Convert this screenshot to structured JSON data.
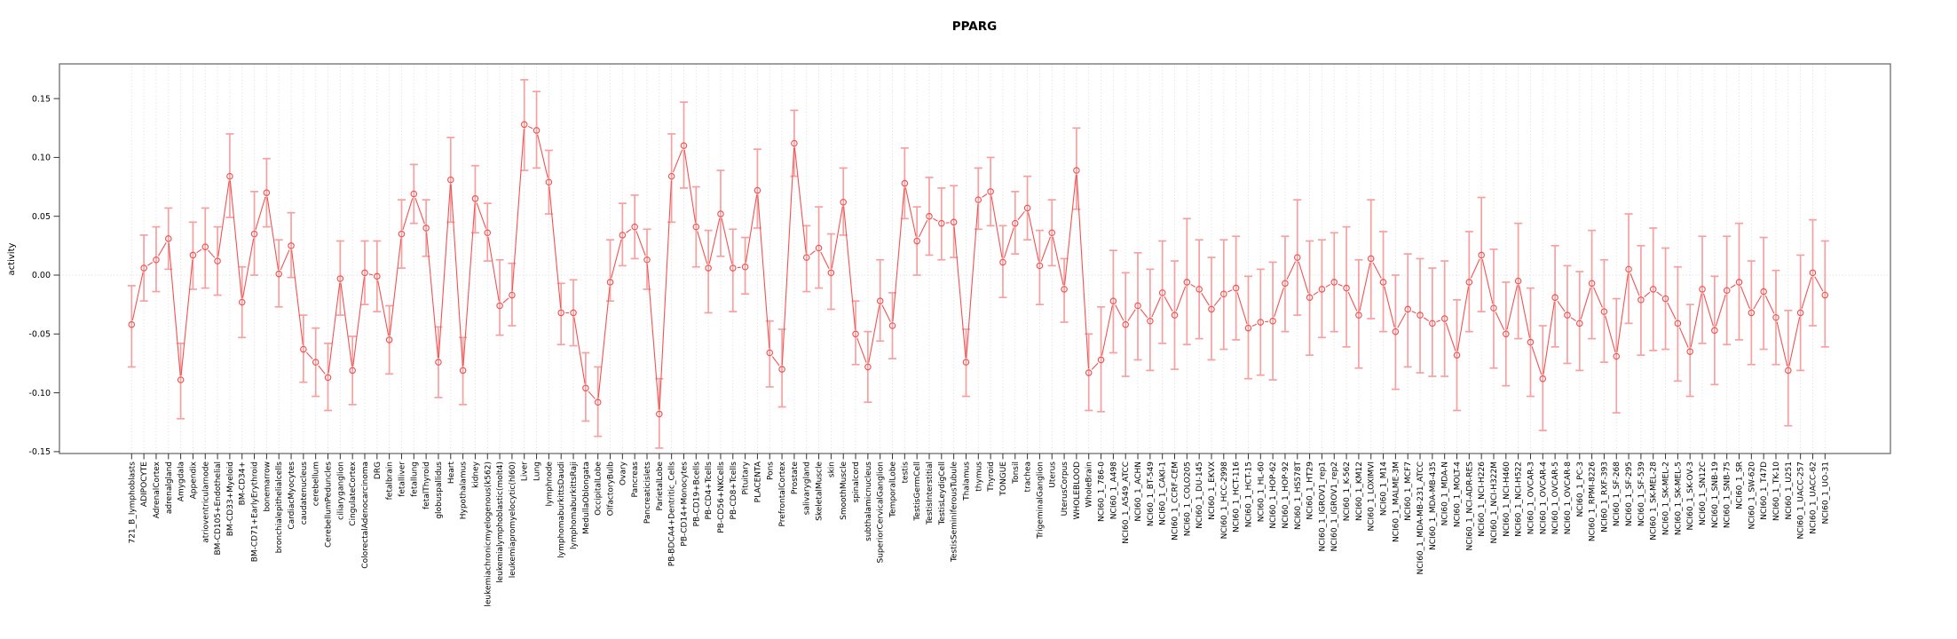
{
  "title": "PPARG",
  "ylabel": "activity",
  "colors": {
    "point_line": "#f25252",
    "error_bar": "#f7a0a0",
    "grid": "#d8d8d8",
    "box": "#6e6e6e",
    "tick": "#333333",
    "text": "#000000"
  },
  "chart_data": {
    "type": "line",
    "title": "PPARG",
    "xlabel": "",
    "ylabel": "activity",
    "ylim": [
      -0.152,
      0.179
    ],
    "yticks": [
      -0.15,
      -0.1,
      -0.05,
      0.0,
      0.05,
      0.1,
      0.15
    ],
    "grid": "vertical dotted gridline at every category; dotted horizontal line at 0",
    "legend": "none",
    "marker": "open-circle",
    "error_bars": true,
    "categories": [
      "721_B_lymphoblasts",
      "ADIPOCYTE",
      "AdrenalCortex",
      "adrenalgland",
      "Amygdala",
      "Appendix",
      "atrioventricularnode",
      "BM-CD105+Endothelial",
      "BM-CD33+Myeloid",
      "BM-CD34+",
      "BM-CD71+EarlyErythroid",
      "bonemarrow",
      "bronchialepithelialcells",
      "CardiacMyocytes",
      "caudatenucleus",
      "cerebellum",
      "CerebellumPeduncles",
      "ciliaryganglion",
      "CingulateCortex",
      "ColorectalAdenocarcinoma",
      "DRG",
      "fetalbrain",
      "fetalliver",
      "fetallung",
      "fetalThyroid",
      "globuspallidus",
      "Heart",
      "Hypothalamus",
      "kidney",
      "leukemiachronicmyelogenous(k562)",
      "leukemialymphoblastic(molt4)",
      "leukemiapromyelocytic(hl60)",
      "Liver",
      "Lung",
      "lymphnode",
      "lymphomaburkittsDaudi",
      "lymphomaburkittsRaji",
      "MedullaOblongata",
      "OccipitalLobe",
      "OlfactoryBulb",
      "Ovary",
      "Pancreas",
      "Pancreaticislets",
      "ParietalLobe",
      "PB-BDCA4+Dentritic_Cells",
      "PB-CD14+Monocytes",
      "PB-CD19+Bcells",
      "PB-CD4+Tcells",
      "PB-CD56+NKCells",
      "PB-CD8+Tcells",
      "Pituitary",
      "PLACENTA",
      "Pons",
      "PrefrontalCortex",
      "Prostate",
      "salivarygland",
      "SkeletalMuscle",
      "skin",
      "SmoothMuscle",
      "spinalcord",
      "subthalamicnucleus",
      "SuperiorCervicalGanglion",
      "TemporalLobe",
      "testis",
      "TestisGermCell",
      "TestisInterstitial",
      "TestisLeydigCell",
      "TestisSeminiferousTubule",
      "Thalamus",
      "thymus",
      "Thyroid",
      "TONGUE",
      "Tonsil",
      "trachea",
      "TrigeminalGanglion",
      "Uterus",
      "UterusCorpus",
      "WHOLEBLOOD",
      "WholeBrain",
      "NCI60_1_786-0",
      "NCI60_1_A498",
      "NCI60_1_A549_ATCC",
      "NCI60_1_ACHN",
      "NCI60_1_BT-549",
      "NCI60_1_CAKI-1",
      "NCI60_1_CCRF-CEM",
      "NCI60_1_COLO205",
      "NCI60_1_DU-145",
      "NCI60_1_EKVX",
      "NCI60_1_HCC-2998",
      "NCI60_1_HCT-116",
      "NCI60_1_HCT-15",
      "NCI60_1_HL-60",
      "NCI60_1_HOP-62",
      "NCI60_1_HOP-92",
      "NCI60_1_HS578T",
      "NCI60_1_HT29",
      "NCI60_1_IGROV1_rep1",
      "NCI60_1_IGROV1_rep2",
      "NCI60_1_K-562",
      "NCI60_1_KM12",
      "NCI60_1_LOXIMVI",
      "NCI60_1_M14",
      "NCI60_1_MALME-3M",
      "NCI60_1_MCF7",
      "NCI60_1_MDA-MB-231_ATCC",
      "NCI60_1_MDA-MB-435",
      "NCI60_1_MDA-N",
      "NCI60_1_MOLT-4",
      "NCI60_1_NCI-ADR-RES",
      "NCI60_1_NCI-H226",
      "NCI60_1_NCI-H322M",
      "NCI60_1_NCI-H460",
      "NCI60_1_NCI-H522",
      "NCI60_1_OVCAR-3",
      "NCI60_1_OVCAR-4",
      "NCI60_1_OVCAR-5",
      "NCI60_1_OVCAR-8",
      "NCI60_1_PC-3",
      "NCI60_1_RPMI-8226",
      "NCI60_1_RXF-393",
      "NCI60_1_SF-268",
      "NCI60_1_SF-295",
      "NCI60_1_SF-539",
      "NCI60_1_SK-MEL-28",
      "NCI60_1_SK-MEL-2",
      "NCI60_1_SK-MEL-5",
      "NCI60_1_SK-OV-3",
      "NCI60_1_SN12C",
      "NCI60_1_SNB-19",
      "NCI60_1_SNB-75",
      "NCI60_1_SR",
      "NCI60_1_SW-620",
      "NCI60_1_T47D",
      "NCI60_1_TK-10",
      "NCI60_1_U251",
      "NCI60_1_UACC-257",
      "NCI60_1_UACC-62",
      "NCI60_1_UO-31"
    ],
    "values": [
      -0.042,
      0.006,
      0.013,
      0.031,
      -0.089,
      0.017,
      0.024,
      0.012,
      0.084,
      -0.023,
      0.035,
      0.07,
      0.001,
      0.025,
      -0.063,
      -0.074,
      -0.087,
      -0.003,
      -0.081,
      0.002,
      -0.001,
      -0.055,
      0.035,
      0.069,
      0.04,
      -0.074,
      0.081,
      -0.081,
      0.065,
      0.036,
      -0.026,
      -0.017,
      0.128,
      0.123,
      0.079,
      -0.032,
      -0.032,
      -0.096,
      -0.108,
      -0.006,
      0.034,
      0.041,
      0.013,
      -0.118,
      0.084,
      0.11,
      0.041,
      0.006,
      0.052,
      0.006,
      0.007,
      0.072,
      -0.066,
      -0.08,
      0.112,
      0.015,
      0.023,
      0.002,
      0.062,
      -0.05,
      -0.078,
      -0.022,
      -0.043,
      0.078,
      0.029,
      0.05,
      0.044,
      0.045,
      -0.074,
      0.064,
      0.071,
      0.011,
      0.044,
      0.057,
      0.008,
      0.036,
      -0.012,
      0.089,
      -0.083,
      -0.072,
      -0.022,
      -0.042,
      -0.026,
      -0.039,
      -0.015,
      -0.034,
      -0.006,
      -0.012,
      -0.029,
      -0.016,
      -0.011,
      -0.045,
      -0.04,
      -0.039,
      -0.007,
      0.015,
      -0.019,
      -0.012,
      -0.006,
      -0.011,
      -0.034,
      0.014,
      -0.006,
      -0.048,
      -0.029,
      -0.034,
      -0.041,
      -0.037,
      -0.068,
      -0.006,
      0.017,
      -0.028,
      -0.05,
      -0.005,
      -0.057,
      -0.088,
      -0.019,
      -0.034,
      -0.041,
      -0.007,
      -0.031,
      -0.069,
      0.005,
      -0.021,
      -0.012,
      -0.02,
      -0.041,
      -0.065,
      -0.012,
      -0.047,
      -0.013,
      -0.006,
      -0.032,
      -0.014,
      -0.036,
      -0.081,
      -0.032,
      0.002,
      -0.017
    ],
    "err_low": [
      -0.078,
      -0.022,
      -0.014,
      0.005,
      -0.122,
      -0.012,
      -0.011,
      -0.017,
      0.049,
      -0.053,
      0.0,
      0.041,
      -0.027,
      -0.002,
      -0.091,
      -0.103,
      -0.115,
      -0.034,
      -0.11,
      -0.025,
      -0.031,
      -0.084,
      0.006,
      0.044,
      0.016,
      -0.104,
      0.045,
      -0.11,
      0.036,
      0.012,
      -0.051,
      -0.043,
      0.089,
      0.091,
      0.052,
      -0.059,
      -0.06,
      -0.124,
      -0.137,
      -0.022,
      0.008,
      0.014,
      -0.012,
      -0.147,
      0.045,
      0.074,
      0.007,
      -0.032,
      0.016,
      -0.031,
      -0.016,
      0.04,
      -0.095,
      -0.112,
      0.084,
      -0.014,
      -0.011,
      -0.029,
      0.034,
      -0.076,
      -0.108,
      -0.056,
      -0.071,
      0.048,
      0.0,
      0.017,
      0.013,
      0.015,
      -0.103,
      0.039,
      0.042,
      -0.019,
      0.018,
      0.03,
      -0.025,
      0.008,
      -0.04,
      0.056,
      -0.115,
      -0.116,
      -0.066,
      -0.086,
      -0.072,
      -0.081,
      -0.058,
      -0.08,
      -0.059,
      -0.054,
      -0.072,
      -0.063,
      -0.055,
      -0.088,
      -0.085,
      -0.089,
      -0.048,
      -0.034,
      -0.068,
      -0.053,
      -0.048,
      -0.061,
      -0.079,
      -0.037,
      -0.048,
      -0.097,
      -0.078,
      -0.083,
      -0.086,
      -0.086,
      -0.115,
      -0.048,
      -0.031,
      -0.079,
      -0.094,
      -0.054,
      -0.103,
      -0.132,
      -0.061,
      -0.075,
      -0.081,
      -0.054,
      -0.074,
      -0.117,
      -0.041,
      -0.068,
      -0.064,
      -0.063,
      -0.09,
      -0.103,
      -0.058,
      -0.093,
      -0.059,
      -0.055,
      -0.076,
      -0.063,
      -0.076,
      -0.128,
      -0.081,
      -0.043,
      -0.061
    ],
    "err_high": [
      -0.009,
      0.034,
      0.041,
      0.057,
      -0.058,
      0.045,
      0.057,
      0.041,
      0.12,
      0.007,
      0.071,
      0.099,
      0.03,
      0.053,
      -0.034,
      -0.045,
      -0.058,
      0.029,
      -0.052,
      0.029,
      0.029,
      -0.026,
      0.064,
      0.094,
      0.064,
      -0.044,
      0.117,
      -0.053,
      0.093,
      0.061,
      0.013,
      0.01,
      0.166,
      0.156,
      0.106,
      -0.007,
      -0.004,
      -0.066,
      -0.078,
      0.03,
      0.061,
      0.068,
      0.039,
      -0.088,
      0.12,
      0.147,
      0.075,
      0.038,
      0.089,
      0.039,
      0.032,
      0.107,
      -0.039,
      -0.046,
      0.14,
      0.042,
      0.058,
      0.035,
      0.091,
      -0.022,
      -0.048,
      0.013,
      -0.015,
      0.108,
      0.058,
      0.083,
      0.074,
      0.076,
      -0.046,
      0.091,
      0.1,
      0.042,
      0.071,
      0.084,
      0.038,
      0.064,
      0.014,
      0.125,
      -0.05,
      -0.027,
      0.021,
      0.002,
      0.019,
      0.005,
      0.029,
      0.012,
      0.048,
      0.03,
      0.015,
      0.03,
      0.033,
      -0.001,
      0.005,
      0.011,
      0.033,
      0.064,
      0.029,
      0.03,
      0.036,
      0.041,
      0.013,
      0.064,
      0.037,
      0.0,
      0.018,
      0.014,
      0.006,
      0.012,
      -0.021,
      0.037,
      0.066,
      0.022,
      -0.006,
      0.044,
      -0.011,
      -0.043,
      0.025,
      0.008,
      0.003,
      0.038,
      0.013,
      -0.02,
      0.052,
      0.025,
      0.04,
      0.023,
      0.007,
      -0.025,
      0.033,
      -0.001,
      0.033,
      0.044,
      0.012,
      0.032,
      0.004,
      -0.03,
      0.017,
      0.047,
      0.029
    ]
  }
}
